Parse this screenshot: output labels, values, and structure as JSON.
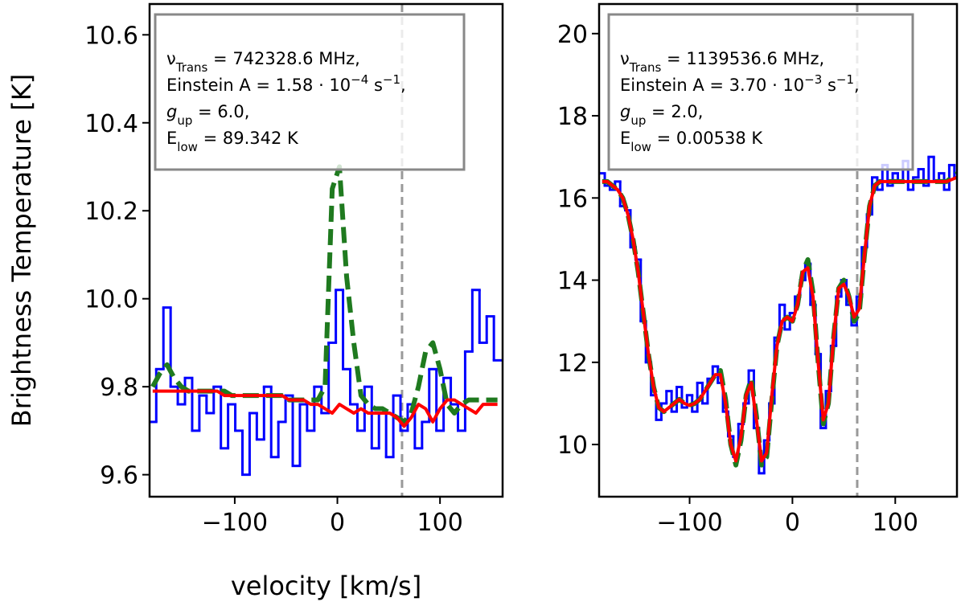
{
  "chart_data": [
    {
      "type": "line",
      "ylabel": "Brightness Temperature [K]",
      "xlabel": "velocity [km/s]",
      "xlim": [
        -183,
        161
      ],
      "ylim": [
        9.55,
        10.67
      ],
      "xticks": [
        {
          "value": -100,
          "label": "−100"
        },
        0,
        100
      ],
      "yticks": [
        9.6,
        9.8,
        {
          "value": 10,
          "label": "10.0"
        },
        10.2,
        10.4,
        10.6
      ],
      "vline": 63,
      "vline_color": "#999999",
      "annotation": [
        [
          "ν",
          {
            "sub": "Trans"
          },
          " = 742328.6 MHz,"
        ],
        [
          "Einstein A = 1.58 · 10",
          {
            "sup": "−4"
          },
          " s",
          {
            "sup": "−1"
          },
          ","
        ],
        [
          {
            "i": "g"
          },
          {
            "sub": "up"
          },
          " = 6.0,"
        ],
        [
          "E",
          {
            "sub": "low"
          },
          " = 89.342 K"
        ]
      ],
      "x": [
        -180,
        -173,
        -166,
        -159,
        -152,
        -145,
        -138,
        -131,
        -124,
        -117,
        -110,
        -103,
        -96,
        -89,
        -82,
        -75,
        -68,
        -61,
        -54,
        -47,
        -40,
        -33,
        -26,
        -19,
        -12,
        -5,
        2,
        9,
        16,
        23,
        30,
        37,
        44,
        51,
        58,
        65,
        72,
        79,
        86,
        93,
        100,
        107,
        114,
        121,
        128,
        135,
        142,
        149,
        156
      ],
      "series": [
        {
          "color": "#0000ff",
          "style": "steps",
          "width": 3,
          "values": [
            9.72,
            9.84,
            9.98,
            9.8,
            9.76,
            9.82,
            9.7,
            9.78,
            9.74,
            9.8,
            9.66,
            9.76,
            9.7,
            9.6,
            9.74,
            9.68,
            9.8,
            9.64,
            9.72,
            9.78,
            9.62,
            9.76,
            9.7,
            9.8,
            9.74,
            9.9,
            10.02,
            9.84,
            9.76,
            9.7,
            9.8,
            9.66,
            9.74,
            9.64,
            9.78,
            9.7,
            9.76,
            9.66,
            9.72,
            9.84,
            9.7,
            9.82,
            9.76,
            9.7,
            9.88,
            10.02,
            9.9,
            9.96,
            9.86
          ]
        },
        {
          "color": "#1f7a1f",
          "style": "dashed",
          "width": 6,
          "values": [
            9.8,
            9.83,
            9.85,
            9.82,
            9.8,
            9.79,
            9.79,
            9.79,
            9.79,
            9.79,
            9.79,
            9.78,
            9.78,
            9.78,
            9.78,
            9.78,
            9.78,
            9.78,
            9.78,
            9.77,
            9.77,
            9.77,
            9.77,
            9.77,
            9.8,
            10.25,
            10.3,
            10.05,
            9.9,
            9.78,
            9.76,
            9.75,
            9.75,
            9.74,
            9.73,
            9.72,
            9.74,
            9.8,
            9.88,
            9.9,
            9.84,
            9.76,
            9.74,
            9.76,
            9.77,
            9.77,
            9.77,
            9.77,
            9.77
          ]
        },
        {
          "color": "#ff0000",
          "style": "solid",
          "width": 4,
          "values": [
            9.79,
            9.79,
            9.79,
            9.79,
            9.79,
            9.79,
            9.79,
            9.79,
            9.79,
            9.79,
            9.78,
            9.78,
            9.78,
            9.78,
            9.78,
            9.78,
            9.78,
            9.78,
            9.78,
            9.77,
            9.77,
            9.77,
            9.76,
            9.76,
            9.75,
            9.74,
            9.76,
            9.75,
            9.74,
            9.75,
            9.74,
            9.74,
            9.74,
            9.74,
            9.73,
            9.71,
            9.73,
            9.76,
            9.75,
            9.72,
            9.75,
            9.77,
            9.77,
            9.76,
            9.75,
            9.74,
            9.76,
            9.76,
            9.76
          ]
        }
      ]
    },
    {
      "type": "line",
      "xlim": [
        -188,
        160
      ],
      "ylim": [
        8.73,
        20.72
      ],
      "xticks": [
        {
          "value": -100,
          "label": "−100"
        },
        0,
        100
      ],
      "yticks": [
        10,
        12,
        14,
        16,
        18,
        20
      ],
      "vline": 63,
      "vline_color": "#999999",
      "annotation": [
        [
          "ν",
          {
            "sub": "Trans"
          },
          " = 1139536.6 MHz,"
        ],
        [
          "Einstein A = 3.70 · 10",
          {
            "sup": "−3"
          },
          " s",
          {
            "sup": "−1"
          },
          ","
        ],
        [
          {
            "i": "g"
          },
          {
            "sub": "up"
          },
          " = 2.0,"
        ],
        [
          "E",
          {
            "sub": "low"
          },
          " = 0.00538 K"
        ]
      ],
      "x": [
        -185,
        -180,
        -175,
        -170,
        -165,
        -160,
        -155,
        -150,
        -145,
        -140,
        -135,
        -130,
        -125,
        -120,
        -115,
        -110,
        -105,
        -100,
        -95,
        -90,
        -85,
        -80,
        -75,
        -70,
        -65,
        -60,
        -55,
        -50,
        -45,
        -40,
        -35,
        -30,
        -25,
        -20,
        -15,
        -10,
        -5,
        0,
        5,
        10,
        15,
        20,
        25,
        30,
        35,
        40,
        45,
        50,
        55,
        60,
        65,
        70,
        75,
        80,
        85,
        90,
        95,
        100,
        105,
        110,
        115,
        120,
        125,
        130,
        135,
        140,
        145,
        150,
        155,
        160
      ],
      "series": [
        {
          "color": "#0000ff",
          "style": "steps",
          "width": 3,
          "values": [
            16.6,
            16.3,
            16.2,
            16.4,
            15.8,
            15.7,
            14.8,
            14.5,
            13.0,
            12.0,
            11.2,
            10.6,
            11.0,
            11.3,
            10.8,
            11.4,
            10.9,
            11.2,
            10.8,
            11.5,
            11.0,
            11.6,
            11.9,
            11.5,
            10.8,
            10.2,
            9.7,
            10.5,
            11.0,
            11.8,
            10.4,
            9.3,
            10.1,
            11.0,
            12.6,
            13.4,
            12.8,
            13.2,
            13.6,
            14.0,
            14.4,
            13.4,
            12.2,
            10.4,
            11.3,
            12.4,
            13.6,
            14.0,
            13.4,
            12.9,
            13.6,
            14.8,
            15.6,
            16.5,
            16.2,
            16.8,
            16.3,
            16.6,
            16.4,
            16.9,
            16.2,
            16.5,
            16.7,
            16.3,
            17.0,
            16.4,
            16.6,
            16.2,
            16.8,
            16.5
          ]
        },
        {
          "color": "#1f7a1f",
          "style": "dashed",
          "width": 6,
          "values": [
            16.4,
            16.4,
            16.3,
            16.2,
            16.0,
            15.6,
            15.0,
            14.2,
            13.2,
            12.2,
            11.4,
            10.9,
            10.8,
            10.9,
            11.0,
            11.1,
            11.0,
            10.95,
            11.0,
            11.1,
            11.3,
            11.5,
            11.7,
            11.8,
            11.1,
            10.0,
            9.5,
            10.1,
            11.2,
            11.6,
            10.7,
            9.5,
            9.7,
            11.1,
            12.4,
            13.0,
            13.1,
            13.0,
            13.4,
            14.2,
            14.5,
            13.7,
            12.0,
            10.5,
            11.0,
            12.6,
            13.8,
            14.0,
            13.6,
            13.0,
            13.2,
            14.6,
            15.8,
            16.3,
            16.4,
            16.4,
            16.4,
            16.4,
            16.4,
            16.4,
            16.4,
            16.4,
            16.4,
            16.4,
            16.4,
            16.4,
            16.4,
            16.4,
            16.5,
            16.6
          ]
        },
        {
          "color": "#ff0000",
          "style": "solid",
          "width": 4,
          "values": [
            16.4,
            16.4,
            16.3,
            16.2,
            16.0,
            15.6,
            15.0,
            14.2,
            13.2,
            12.2,
            11.4,
            10.9,
            10.8,
            10.9,
            11.0,
            11.1,
            11.0,
            10.95,
            11.0,
            11.1,
            11.3,
            11.5,
            11.7,
            11.7,
            11.0,
            10.0,
            9.6,
            10.2,
            11.2,
            11.5,
            10.6,
            9.6,
            9.8,
            11.2,
            12.4,
            13.0,
            13.1,
            13.0,
            13.4,
            14.2,
            14.3,
            13.6,
            12.0,
            10.6,
            11.0,
            12.6,
            13.8,
            13.9,
            13.6,
            13.1,
            13.3,
            14.6,
            15.8,
            16.3,
            16.4,
            16.4,
            16.4,
            16.4,
            16.4,
            16.4,
            16.4,
            16.4,
            16.4,
            16.4,
            16.4,
            16.4,
            16.4,
            16.4,
            16.45,
            16.5
          ]
        }
      ]
    }
  ]
}
